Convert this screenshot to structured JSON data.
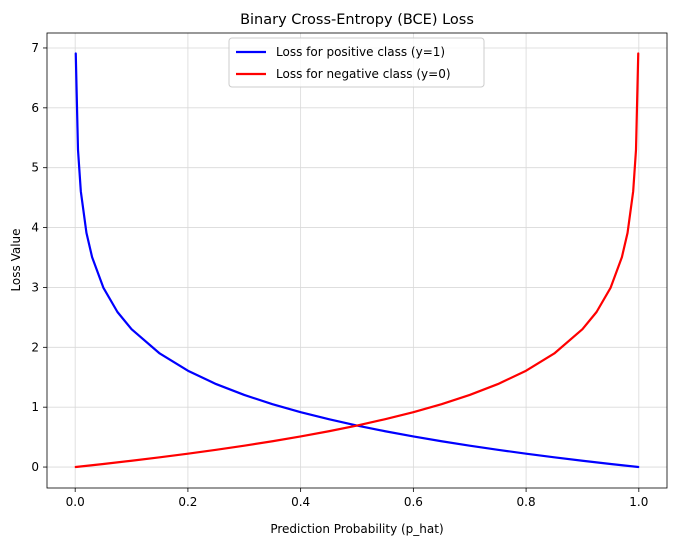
{
  "chart_data": {
    "type": "line",
    "title": "Binary Cross-Entropy (BCE) Loss",
    "xlabel": "Prediction Probability (p_hat)",
    "ylabel": "Loss Value",
    "xlim": [
      -0.05,
      1.05
    ],
    "ylim": [
      -0.35,
      7.25
    ],
    "xticks": [
      0.0,
      0.2,
      0.4,
      0.6,
      0.8,
      1.0
    ],
    "xtick_labels": [
      "0.0",
      "0.2",
      "0.4",
      "0.6",
      "0.8",
      "1.0"
    ],
    "yticks": [
      0,
      1,
      2,
      3,
      4,
      5,
      6,
      7
    ],
    "ytick_labels": [
      "0",
      "1",
      "2",
      "3",
      "4",
      "5",
      "6",
      "7"
    ],
    "grid": true,
    "legend_position": "upper center",
    "series": [
      {
        "name": "Loss for positive class (y=1)",
        "color": "#0000ff",
        "x": [
          0.001,
          0.005,
          0.01,
          0.02,
          0.03,
          0.05,
          0.075,
          0.1,
          0.15,
          0.2,
          0.25,
          0.3,
          0.35,
          0.4,
          0.45,
          0.5,
          0.55,
          0.6,
          0.65,
          0.7,
          0.75,
          0.8,
          0.85,
          0.9,
          0.95,
          0.999
        ],
        "y": [
          6.908,
          5.298,
          4.605,
          3.912,
          3.507,
          2.996,
          2.59,
          2.303,
          1.897,
          1.609,
          1.386,
          1.204,
          1.05,
          0.916,
          0.799,
          0.693,
          0.598,
          0.511,
          0.431,
          0.357,
          0.288,
          0.223,
          0.163,
          0.105,
          0.051,
          0.001
        ]
      },
      {
        "name": "Loss for negative class (y=0)",
        "color": "#ff0000",
        "x": [
          0.001,
          0.05,
          0.1,
          0.15,
          0.2,
          0.25,
          0.3,
          0.35,
          0.4,
          0.45,
          0.5,
          0.55,
          0.6,
          0.65,
          0.7,
          0.75,
          0.8,
          0.85,
          0.9,
          0.925,
          0.95,
          0.97,
          0.98,
          0.99,
          0.995,
          0.999
        ],
        "y": [
          0.001,
          0.051,
          0.105,
          0.163,
          0.223,
          0.288,
          0.357,
          0.431,
          0.511,
          0.598,
          0.693,
          0.799,
          0.916,
          1.05,
          1.204,
          1.386,
          1.609,
          1.897,
          2.303,
          2.59,
          2.996,
          3.507,
          3.912,
          4.605,
          5.298,
          6.908
        ]
      }
    ]
  }
}
